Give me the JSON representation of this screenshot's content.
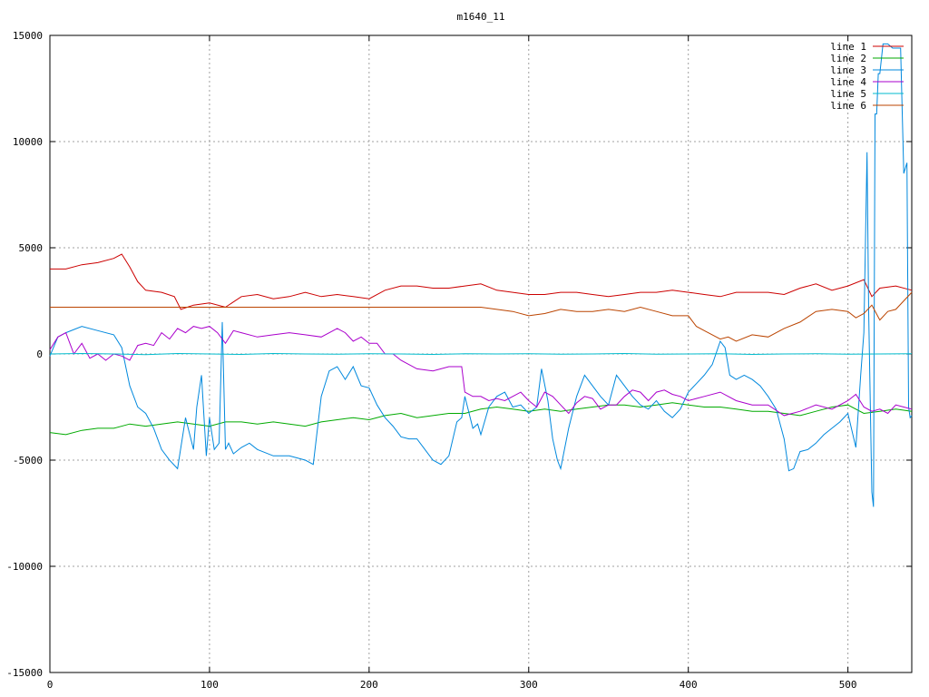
{
  "chart_data": {
    "type": "line",
    "title": "m1640_11",
    "xlabel": "",
    "ylabel": "",
    "xlim": [
      0,
      540
    ],
    "ylim": [
      -15000,
      15000
    ],
    "xticks": [
      0,
      100,
      200,
      300,
      400,
      500
    ],
    "yticks": [
      -15000,
      -10000,
      -5000,
      0,
      5000,
      10000,
      15000
    ],
    "grid": true,
    "legend_position": "top-right",
    "series": [
      {
        "name": "line 1",
        "color": "#cc0000",
        "x": [
          0,
          10,
          20,
          30,
          40,
          45,
          50,
          55,
          60,
          70,
          78,
          82,
          90,
          100,
          110,
          120,
          130,
          140,
          150,
          160,
          170,
          180,
          190,
          200,
          210,
          220,
          230,
          240,
          250,
          260,
          270,
          280,
          290,
          300,
          310,
          320,
          330,
          340,
          350,
          360,
          370,
          380,
          390,
          400,
          410,
          420,
          430,
          440,
          450,
          460,
          470,
          480,
          490,
          500,
          510,
          515,
          520,
          530,
          540
        ],
        "y": [
          4000,
          4000,
          4200,
          4300,
          4500,
          4700,
          4100,
          3400,
          3000,
          2900,
          2700,
          2100,
          2300,
          2400,
          2200,
          2700,
          2800,
          2600,
          2700,
          2900,
          2700,
          2800,
          2700,
          2600,
          3000,
          3200,
          3200,
          3100,
          3100,
          3200,
          3300,
          3000,
          2900,
          2800,
          2800,
          2900,
          2900,
          2800,
          2700,
          2800,
          2900,
          2900,
          3000,
          2900,
          2800,
          2700,
          2900,
          2900,
          2900,
          2800,
          3100,
          3300,
          3000,
          3200,
          3500,
          2700,
          3100,
          3200,
          3000
        ]
      },
      {
        "name": "line 2",
        "color": "#00aa00",
        "x": [
          0,
          10,
          20,
          30,
          40,
          50,
          60,
          70,
          80,
          90,
          100,
          110,
          120,
          130,
          140,
          150,
          160,
          170,
          180,
          190,
          200,
          210,
          220,
          230,
          240,
          250,
          260,
          270,
          280,
          290,
          300,
          310,
          320,
          330,
          340,
          350,
          360,
          370,
          380,
          390,
          400,
          410,
          420,
          430,
          440,
          450,
          460,
          470,
          480,
          490,
          500,
          510,
          520,
          530,
          540
        ],
        "y": [
          -3700,
          -3800,
          -3600,
          -3500,
          -3500,
          -3300,
          -3400,
          -3300,
          -3200,
          -3300,
          -3400,
          -3200,
          -3200,
          -3300,
          -3200,
          -3300,
          -3400,
          -3200,
          -3100,
          -3000,
          -3100,
          -2900,
          -2800,
          -3000,
          -2900,
          -2800,
          -2800,
          -2600,
          -2500,
          -2600,
          -2700,
          -2600,
          -2700,
          -2600,
          -2500,
          -2400,
          -2400,
          -2500,
          -2400,
          -2300,
          -2400,
          -2500,
          -2500,
          -2600,
          -2700,
          -2700,
          -2800,
          -2900,
          -2700,
          -2500,
          -2400,
          -2800,
          -2700,
          -2600,
          -2700
        ]
      },
      {
        "name": "line 3",
        "color": "#0088dd",
        "x": [
          0,
          5,
          10,
          20,
          30,
          40,
          45,
          50,
          55,
          60,
          65,
          70,
          75,
          80,
          85,
          90,
          92,
          95,
          98,
          100,
          103,
          106,
          108,
          110,
          112,
          115,
          120,
          125,
          130,
          140,
          150,
          160,
          165,
          170,
          175,
          180,
          185,
          190,
          195,
          200,
          205,
          210,
          215,
          220,
          225,
          230,
          235,
          240,
          245,
          250,
          255,
          258,
          260,
          265,
          268,
          270,
          275,
          280,
          285,
          290,
          295,
          300,
          305,
          308,
          312,
          315,
          318,
          320,
          325,
          330,
          335,
          340,
          345,
          350,
          355,
          360,
          365,
          370,
          375,
          380,
          385,
          390,
          395,
          400,
          405,
          410,
          415,
          420,
          423,
          426,
          430,
          435,
          440,
          445,
          450,
          455,
          460,
          463,
          466,
          470,
          475,
          480,
          485,
          490,
          495,
          500,
          505,
          508,
          510,
          512,
          513,
          515,
          516,
          517,
          518,
          519,
          520,
          522,
          525,
          528,
          530,
          533,
          535,
          537,
          538,
          539,
          540
        ],
        "y": [
          -100,
          800,
          1000,
          1300,
          1100,
          900,
          300,
          -1500,
          -2500,
          -2800,
          -3500,
          -4500,
          -5000,
          -5400,
          -3000,
          -4500,
          -2500,
          -1000,
          -4800,
          -3000,
          -4500,
          -4200,
          1500,
          -4500,
          -4200,
          -4700,
          -4400,
          -4200,
          -4500,
          -4800,
          -4800,
          -5000,
          -5200,
          -2000,
          -800,
          -600,
          -1200,
          -600,
          -1500,
          -1600,
          -2400,
          -3000,
          -3400,
          -3900,
          -4000,
          -4000,
          -4500,
          -5000,
          -5200,
          -4800,
          -3200,
          -3000,
          -2000,
          -3500,
          -3300,
          -3800,
          -2500,
          -2000,
          -1800,
          -2500,
          -2400,
          -2800,
          -2500,
          -700,
          -2200,
          -4000,
          -5000,
          -5400,
          -3500,
          -2000,
          -1000,
          -1500,
          -2000,
          -2400,
          -1000,
          -1500,
          -2000,
          -2400,
          -2600,
          -2200,
          -2700,
          -3000,
          -2600,
          -1800,
          -1400,
          -1000,
          -500,
          600,
          300,
          -1000,
          -1200,
          -1000,
          -1200,
          -1500,
          -2000,
          -2600,
          -4000,
          -5500,
          -5400,
          -4600,
          -4500,
          -4200,
          -3800,
          -3500,
          -3200,
          -2800,
          -4400,
          -1000,
          1000,
          9500,
          2000,
          -6500,
          -7200,
          11300,
          11300,
          13200,
          13200,
          14600,
          14600,
          14400,
          14400,
          14400,
          8500,
          9000,
          -2500,
          -3000,
          -2900
        ]
      },
      {
        "name": "line 4",
        "color": "#aa00cc",
        "x": [
          0,
          5,
          10,
          15,
          20,
          25,
          30,
          35,
          40,
          45,
          50,
          55,
          60,
          65,
          70,
          75,
          80,
          85,
          90,
          95,
          100,
          105,
          110,
          115,
          120,
          130,
          140,
          150,
          160,
          170,
          180,
          185,
          190,
          195,
          200,
          205,
          210,
          215,
          220,
          225,
          230,
          240,
          250,
          255,
          258,
          260,
          265,
          270,
          275,
          280,
          285,
          290,
          295,
          300,
          305,
          310,
          315,
          320,
          325,
          330,
          335,
          340,
          345,
          350,
          355,
          360,
          365,
          370,
          375,
          380,
          385,
          390,
          395,
          400,
          405,
          410,
          420,
          430,
          440,
          450,
          460,
          470,
          480,
          490,
          500,
          505,
          510,
          515,
          520,
          525,
          530,
          535,
          540
        ],
        "y": [
          200,
          800,
          1000,
          0,
          500,
          -200,
          0,
          -300,
          0,
          -100,
          -300,
          400,
          500,
          400,
          1000,
          700,
          1200,
          1000,
          1300,
          1200,
          1300,
          1000,
          500,
          1100,
          1000,
          800,
          900,
          1000,
          900,
          800,
          1200,
          1000,
          600,
          800,
          500,
          500,
          0,
          0,
          -300,
          -500,
          -700,
          -800,
          -600,
          -600,
          -600,
          -1800,
          -2000,
          -2000,
          -2200,
          -2100,
          -2200,
          -2000,
          -1800,
          -2200,
          -2500,
          -1800,
          -2000,
          -2400,
          -2800,
          -2300,
          -2000,
          -2100,
          -2600,
          -2400,
          -2400,
          -2000,
          -1700,
          -1800,
          -2200,
          -1800,
          -1700,
          -1900,
          -2000,
          -2200,
          -2100,
          -2000,
          -1800,
          -2200,
          -2400,
          -2400,
          -2900,
          -2700,
          -2400,
          -2600,
          -2200,
          -1900,
          -2500,
          -2700,
          -2600,
          -2800,
          -2400,
          -2500,
          -2600
        ]
      },
      {
        "name": "line 5",
        "color": "#00bbcc",
        "x": [
          0,
          20,
          40,
          60,
          80,
          100,
          120,
          140,
          160,
          180,
          200,
          220,
          240,
          260,
          280,
          300,
          320,
          340,
          360,
          380,
          400,
          420,
          440,
          460,
          480,
          500,
          520,
          540
        ],
        "y": [
          0,
          20,
          0,
          -30,
          20,
          0,
          -20,
          20,
          0,
          -10,
          10,
          0,
          -20,
          10,
          0,
          10,
          -10,
          0,
          20,
          -10,
          0,
          10,
          -20,
          0,
          10,
          -10,
          0,
          10
        ]
      },
      {
        "name": "line 6",
        "color": "#bb4400",
        "x": [
          0,
          100,
          200,
          268,
          270,
          280,
          290,
          300,
          310,
          320,
          330,
          340,
          350,
          360,
          370,
          380,
          390,
          400,
          405,
          410,
          415,
          420,
          425,
          430,
          440,
          450,
          460,
          470,
          480,
          490,
          500,
          505,
          510,
          515,
          520,
          525,
          530,
          535,
          540
        ],
        "y": [
          2200,
          2200,
          2200,
          2200,
          2200,
          2100,
          2000,
          1800,
          1900,
          2100,
          2000,
          2000,
          2100,
          2000,
          2200,
          2000,
          1800,
          1800,
          1300,
          1100,
          900,
          700,
          800,
          600,
          900,
          800,
          1200,
          1500,
          2000,
          2100,
          2000,
          1700,
          1900,
          2300,
          1600,
          2000,
          2100,
          2500,
          2900
        ]
      }
    ]
  }
}
